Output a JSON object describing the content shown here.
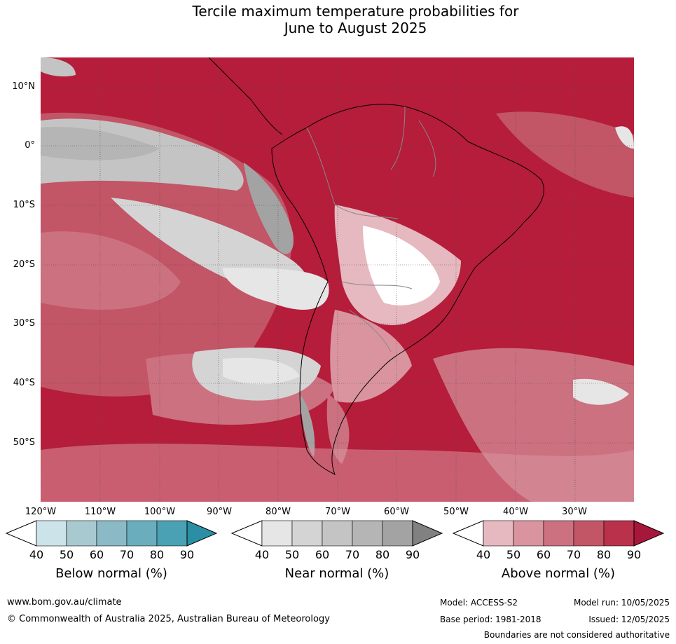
{
  "title": "Tercile maximum temperature probabilities for\nJune to August 2025",
  "colors": {
    "below": [
      "#ffffff",
      "#cde3ea",
      "#a9c9d1",
      "#8bbac6",
      "#6aaebe",
      "#4aa1b3",
      "#2a8ea4"
    ],
    "near": [
      "#ffffff",
      "#e6e6e6",
      "#d4d4d4",
      "#c4c4c4",
      "#b5b5b5",
      "#a3a3a3",
      "#818181"
    ],
    "above": [
      "#ffffff",
      "#e6b8bf",
      "#d9949f",
      "#cc7180",
      "#c25566",
      "#b9314b",
      "#a7173a"
    ],
    "ocean_above_high": "#b51d3a",
    "coastline": "#000000",
    "borders": "#888888"
  },
  "lat_labels": [
    "10°N",
    "0°",
    "10°S",
    "20°S",
    "30°S",
    "40°S",
    "50°S"
  ],
  "lon_labels": [
    "120°W",
    "110°W",
    "100°W",
    "90°W",
    "80°W",
    "70°W",
    "60°W",
    "50°W",
    "40°W",
    "30°W"
  ],
  "colorbars": {
    "ticks": [
      "40",
      "50",
      "60",
      "70",
      "80",
      "90"
    ],
    "below_label": "Below normal (%)",
    "near_label": "Near normal (%)",
    "above_label": "Above normal (%)"
  },
  "footer": {
    "website": "www.bom.gov.au/climate",
    "copyright": "© Commonwealth of Australia 2025, Australian Bureau of Meteorology",
    "model": "Model: ACCESS-S2",
    "model_run": "Model run: 10/05/2025",
    "base_period": "Base period: 1981-2018",
    "issued": "Issued: 12/05/2025",
    "disclaimer": "Boundaries are not considered authoritative"
  }
}
